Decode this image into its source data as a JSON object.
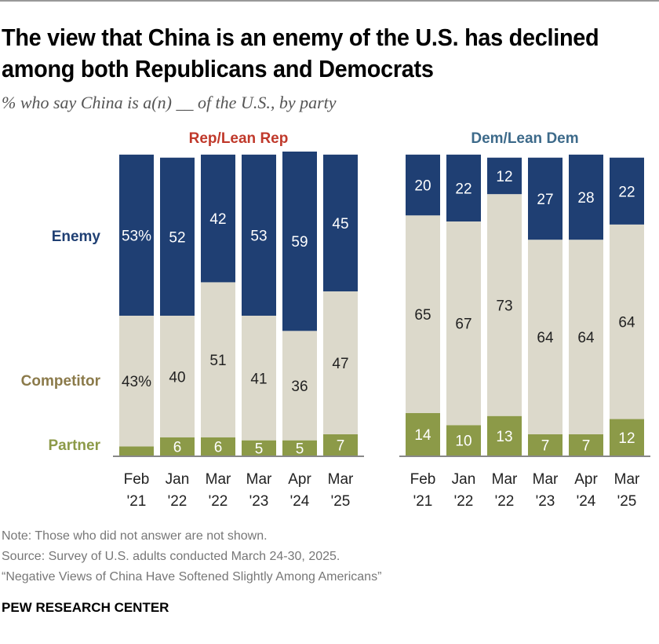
{
  "title": "The view that China is an enemy of the U.S. has declined among both Republicans and Democrats",
  "subtitle": "% who say China is a(n) __ of the U.S., by party",
  "notes": [
    "Note: Those who did not answer are not shown.",
    "Source: Survey of U.S. adults conducted March 24-30, 2025.",
    "“Negative Views of China Have Softened Slightly Among Americans”"
  ],
  "brand": "PEW RESEARCH CENTER",
  "chart_data": {
    "type": "stacked-bar",
    "categories": [
      [
        "Feb",
        "'21"
      ],
      [
        "Jan",
        "'22"
      ],
      [
        "Mar",
        "'22"
      ],
      [
        "Mar",
        "'23"
      ],
      [
        "Apr",
        "'24"
      ],
      [
        "Mar",
        "'25"
      ]
    ],
    "segment_labels": [
      "Partner",
      "Competitor",
      "Enemy"
    ],
    "colors": {
      "Enemy": "#1f3f73",
      "Competitor": "#dcd9cb",
      "Partner": "#8c9a48",
      "rep_title": "#c0392b",
      "dem_title": "#3d6a8a",
      "enemy_label": "#1f3f73",
      "competitor_label": "#8b7a4a",
      "partner_label": "#8c9a48"
    },
    "panels": [
      {
        "title": "Rep/Lean Rep",
        "series": [
          {
            "name": "Enemy",
            "values": [
              53,
              52,
              42,
              53,
              59,
              45
            ],
            "labels": [
              "53%",
              "52",
              "42",
              "53",
              "59",
              "45"
            ]
          },
          {
            "name": "Competitor",
            "values": [
              43,
              40,
              51,
              41,
              36,
              47
            ],
            "labels": [
              "43%",
              "40",
              "51",
              "41",
              "36",
              "47"
            ]
          },
          {
            "name": "Partner",
            "values": [
              3,
              6,
              6,
              5,
              5,
              7
            ],
            "labels": [
              "",
              "6",
              "6",
              "5",
              "5",
              "7"
            ]
          }
        ]
      },
      {
        "title": "Dem/Lean Dem",
        "series": [
          {
            "name": "Enemy",
            "values": [
              20,
              22,
              12,
              27,
              28,
              22
            ],
            "labels": [
              "20",
              "22",
              "12",
              "27",
              "28",
              "22"
            ]
          },
          {
            "name": "Competitor",
            "values": [
              65,
              67,
              73,
              64,
              64,
              64
            ],
            "labels": [
              "65",
              "67",
              "73",
              "64",
              "64",
              "64"
            ]
          },
          {
            "name": "Partner",
            "values": [
              14,
              10,
              13,
              7,
              7,
              12
            ],
            "labels": [
              "14",
              "10",
              "13",
              "7",
              "7",
              "12"
            ]
          }
        ]
      }
    ]
  }
}
